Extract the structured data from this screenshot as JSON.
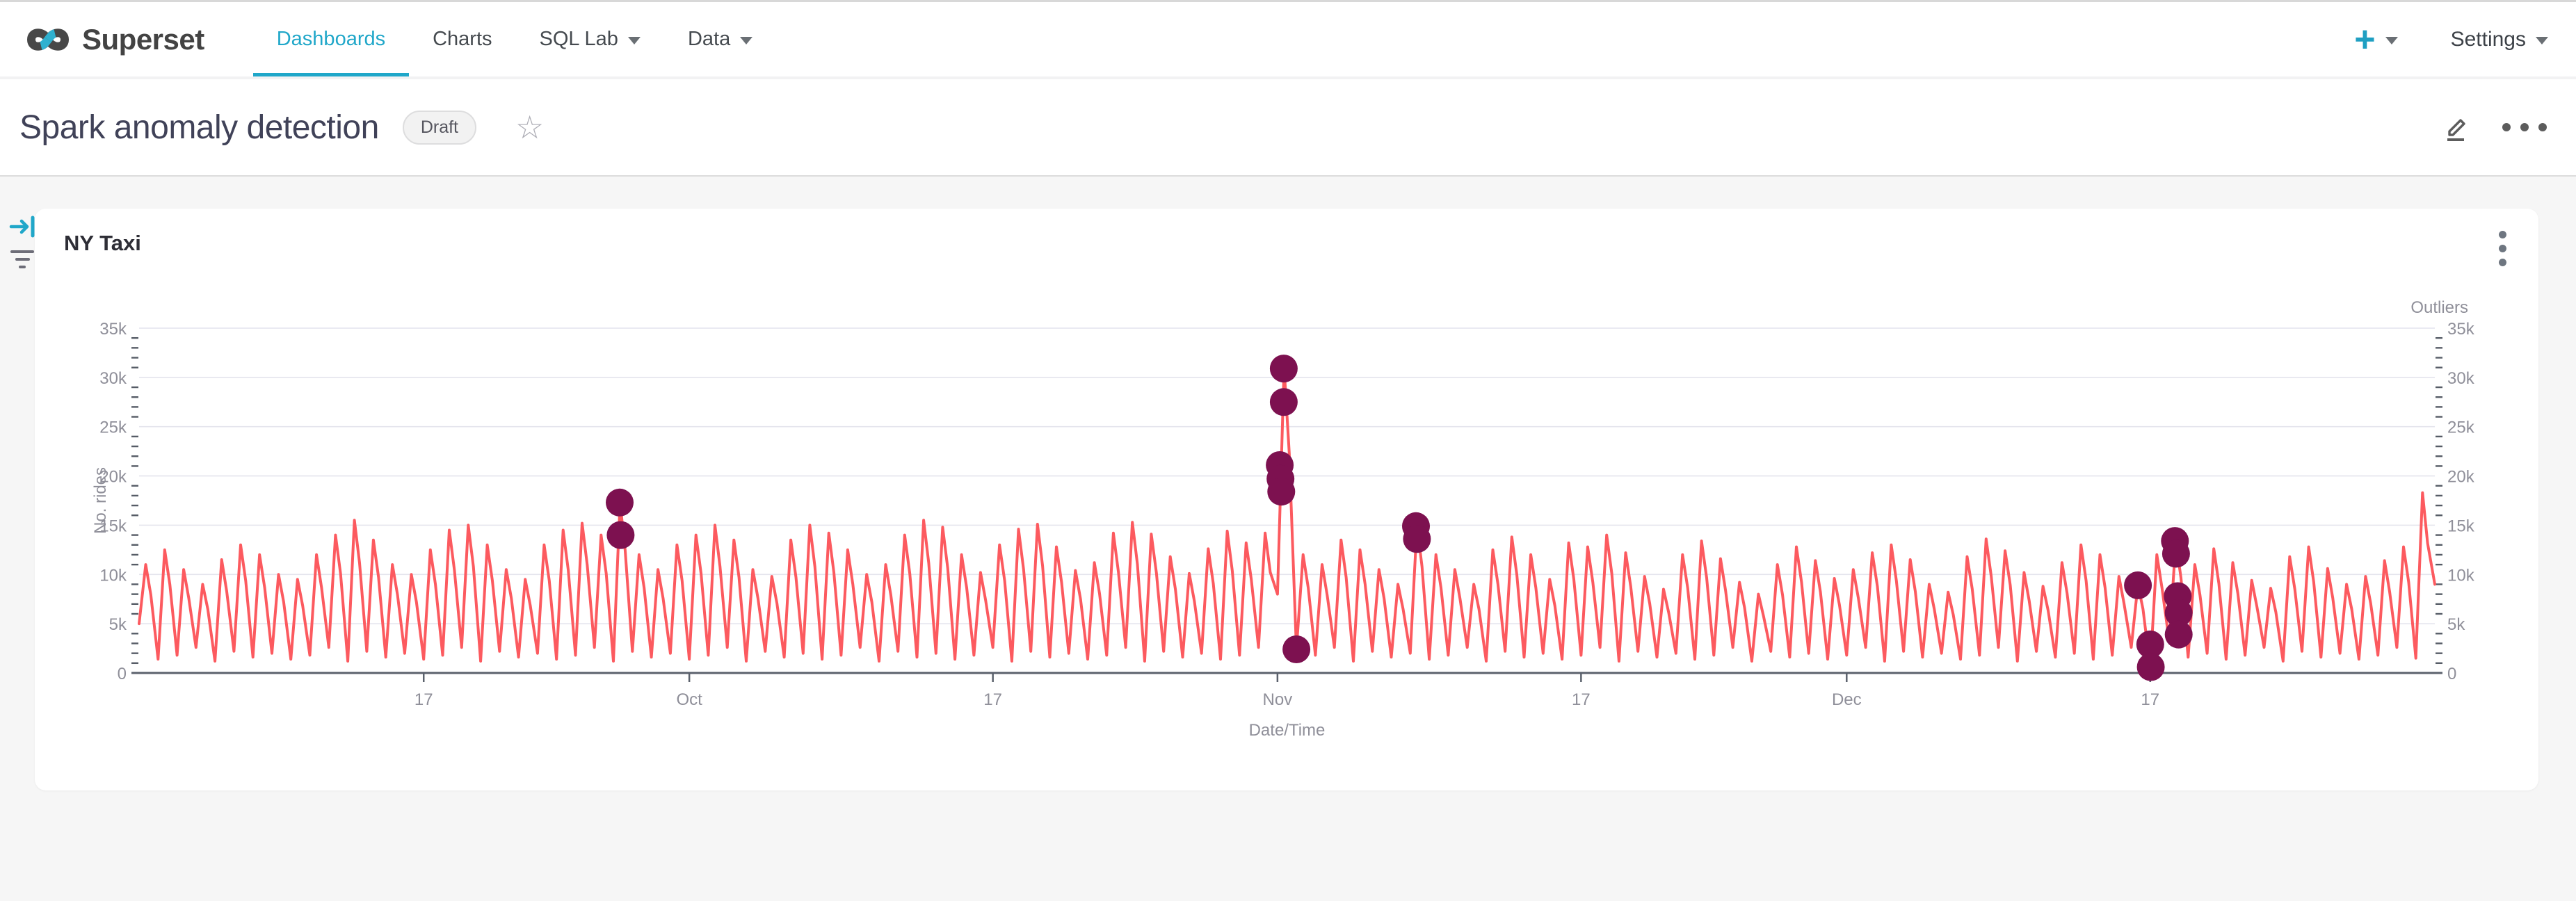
{
  "navbar": {
    "brand": "Superset",
    "items": [
      {
        "label": "Dashboards",
        "active": true,
        "caret": false
      },
      {
        "label": "Charts",
        "active": false,
        "caret": false
      },
      {
        "label": "SQL Lab",
        "active": false,
        "caret": true
      },
      {
        "label": "Data",
        "active": false,
        "caret": true
      }
    ],
    "plus_label": "+",
    "settings_label": "Settings",
    "accent_color": "#20a7c9"
  },
  "header": {
    "title": "Spark anomaly detection",
    "badge": "Draft"
  },
  "panel": {
    "title": "NY Taxi"
  },
  "chart_data": {
    "type": "line",
    "title": "NY Taxi",
    "xlabel": "Date/Time",
    "ylabel": "No. rides",
    "right_axis_label": "Outliers",
    "ylim": [
      0,
      35000
    ],
    "ytick_labels": [
      "0",
      "5k",
      "10k",
      "15k",
      "20k",
      "25k",
      "30k",
      "35k"
    ],
    "xticks": [
      {
        "label": "17",
        "day": 15
      },
      {
        "label": "Oct",
        "day": 29
      },
      {
        "label": "17",
        "day": 45
      },
      {
        "label": "Nov",
        "day": 60
      },
      {
        "label": "17",
        "day": 76
      },
      {
        "label": "Dec",
        "day": 90
      },
      {
        "label": "17",
        "day": 106
      }
    ],
    "x_total_days": 121,
    "grid": true,
    "legend_position": "none",
    "colors": {
      "grid": "#e4e4ed",
      "tick": "#565c66",
      "axis": "#5b616c",
      "label": "#8f8f99"
    },
    "series": [
      {
        "name": "No. rides",
        "type": "line",
        "color": "#fc5a5f",
        "start_k": 5.0,
        "end_k": 9.0,
        "day_peaks_k": [
          11.0,
          12.5,
          10.5,
          9.0,
          11.5,
          13.0,
          12.0,
          10.0,
          9.5,
          12.0,
          14.0,
          15.5,
          13.5,
          11.0,
          10.0,
          12.5,
          14.5,
          15.0,
          13.0,
          10.5,
          9.5,
          13.0,
          14.5,
          15.2,
          14.0,
          17.3,
          12.0,
          10.5,
          13.0,
          14.0,
          15.0,
          13.5,
          10.5,
          9.8,
          13.5,
          15.0,
          14.2,
          12.5,
          10.0,
          11.0,
          14.0,
          15.5,
          14.8,
          12.0,
          10.2,
          13.0,
          14.6,
          15.1,
          12.8,
          10.4,
          11.2,
          14.2,
          15.3,
          14.1,
          11.8,
          10.1,
          12.6,
          14.4,
          13.2,
          14.2,
          31.0,
          12.0,
          11.0,
          13.5,
          12.5,
          10.5,
          9.0,
          15.0,
          12.0,
          10.5,
          9.0,
          12.5,
          13.8,
          12.0,
          9.5,
          13.2,
          12.8,
          14.0,
          12.2,
          9.8,
          8.5,
          12.0,
          13.4,
          11.6,
          9.2,
          8.0,
          11.0,
          12.8,
          11.4,
          9.6,
          10.5,
          12.2,
          13.0,
          11.5,
          9.0,
          8.2,
          11.8,
          13.6,
          12.4,
          10.2,
          8.8,
          11.2,
          13.0,
          12.0,
          9.8,
          9.0,
          12.0,
          13.4,
          11.0,
          12.6,
          11.2,
          9.4,
          8.6,
          11.8,
          12.8,
          10.6,
          9.0,
          9.8,
          11.4,
          12.8,
          18.3
        ],
        "day_troughs_k": [
          2.0,
          1.4,
          1.8,
          2.6,
          1.2,
          2.2,
          1.6,
          2.0,
          1.4,
          1.8,
          2.6,
          1.2,
          2.2,
          1.6,
          2.0,
          1.4,
          1.8,
          2.6,
          1.2,
          2.2,
          1.6,
          2.0,
          1.4,
          1.8,
          2.6,
          1.2,
          2.2,
          1.6,
          2.0,
          1.4,
          1.8,
          2.6,
          1.2,
          2.2,
          1.6,
          2.0,
          1.4,
          1.8,
          2.6,
          1.2,
          2.2,
          1.6,
          2.0,
          1.4,
          1.8,
          2.6,
          1.2,
          2.2,
          1.6,
          2.0,
          1.4,
          1.8,
          2.6,
          1.2,
          2.2,
          1.6,
          2.0,
          1.4,
          1.8,
          2.6,
          8.0,
          2.4,
          1.8,
          2.6,
          1.2,
          2.2,
          1.6,
          2.0,
          1.4,
          1.8,
          2.6,
          1.2,
          2.2,
          1.6,
          2.0,
          1.4,
          1.8,
          2.6,
          1.2,
          2.2,
          1.6,
          2.0,
          1.4,
          1.8,
          2.6,
          1.2,
          2.2,
          1.6,
          2.0,
          1.4,
          1.8,
          2.6,
          1.2,
          2.2,
          1.6,
          2.0,
          1.4,
          1.8,
          2.6,
          1.2,
          2.2,
          1.6,
          2.0,
          1.4,
          1.8,
          2.6,
          0.5,
          3.2,
          1.6,
          2.0,
          1.4,
          1.8,
          2.6,
          1.2,
          2.2,
          1.6,
          2.0,
          1.4,
          1.8,
          2.6,
          1.5
        ]
      },
      {
        "name": "Outliers",
        "type": "scatter",
        "color": "#7d1150",
        "radius": 20,
        "points_day_value_k": [
          [
            25.33,
            17.3
          ],
          [
            25.38,
            14.0
          ],
          [
            60.33,
            30.9
          ],
          [
            60.33,
            27.5
          ],
          [
            60.12,
            21.1
          ],
          [
            60.16,
            19.7
          ],
          [
            60.2,
            18.4
          ],
          [
            61.0,
            2.4
          ],
          [
            67.3,
            14.9
          ],
          [
            67.35,
            13.6
          ],
          [
            105.35,
            8.9
          ],
          [
            107.3,
            13.4
          ],
          [
            107.36,
            12.1
          ],
          [
            107.45,
            7.8
          ],
          [
            107.5,
            6.1
          ],
          [
            107.5,
            3.9
          ],
          [
            106.0,
            2.9
          ],
          [
            106.03,
            0.6
          ]
        ]
      }
    ]
  }
}
